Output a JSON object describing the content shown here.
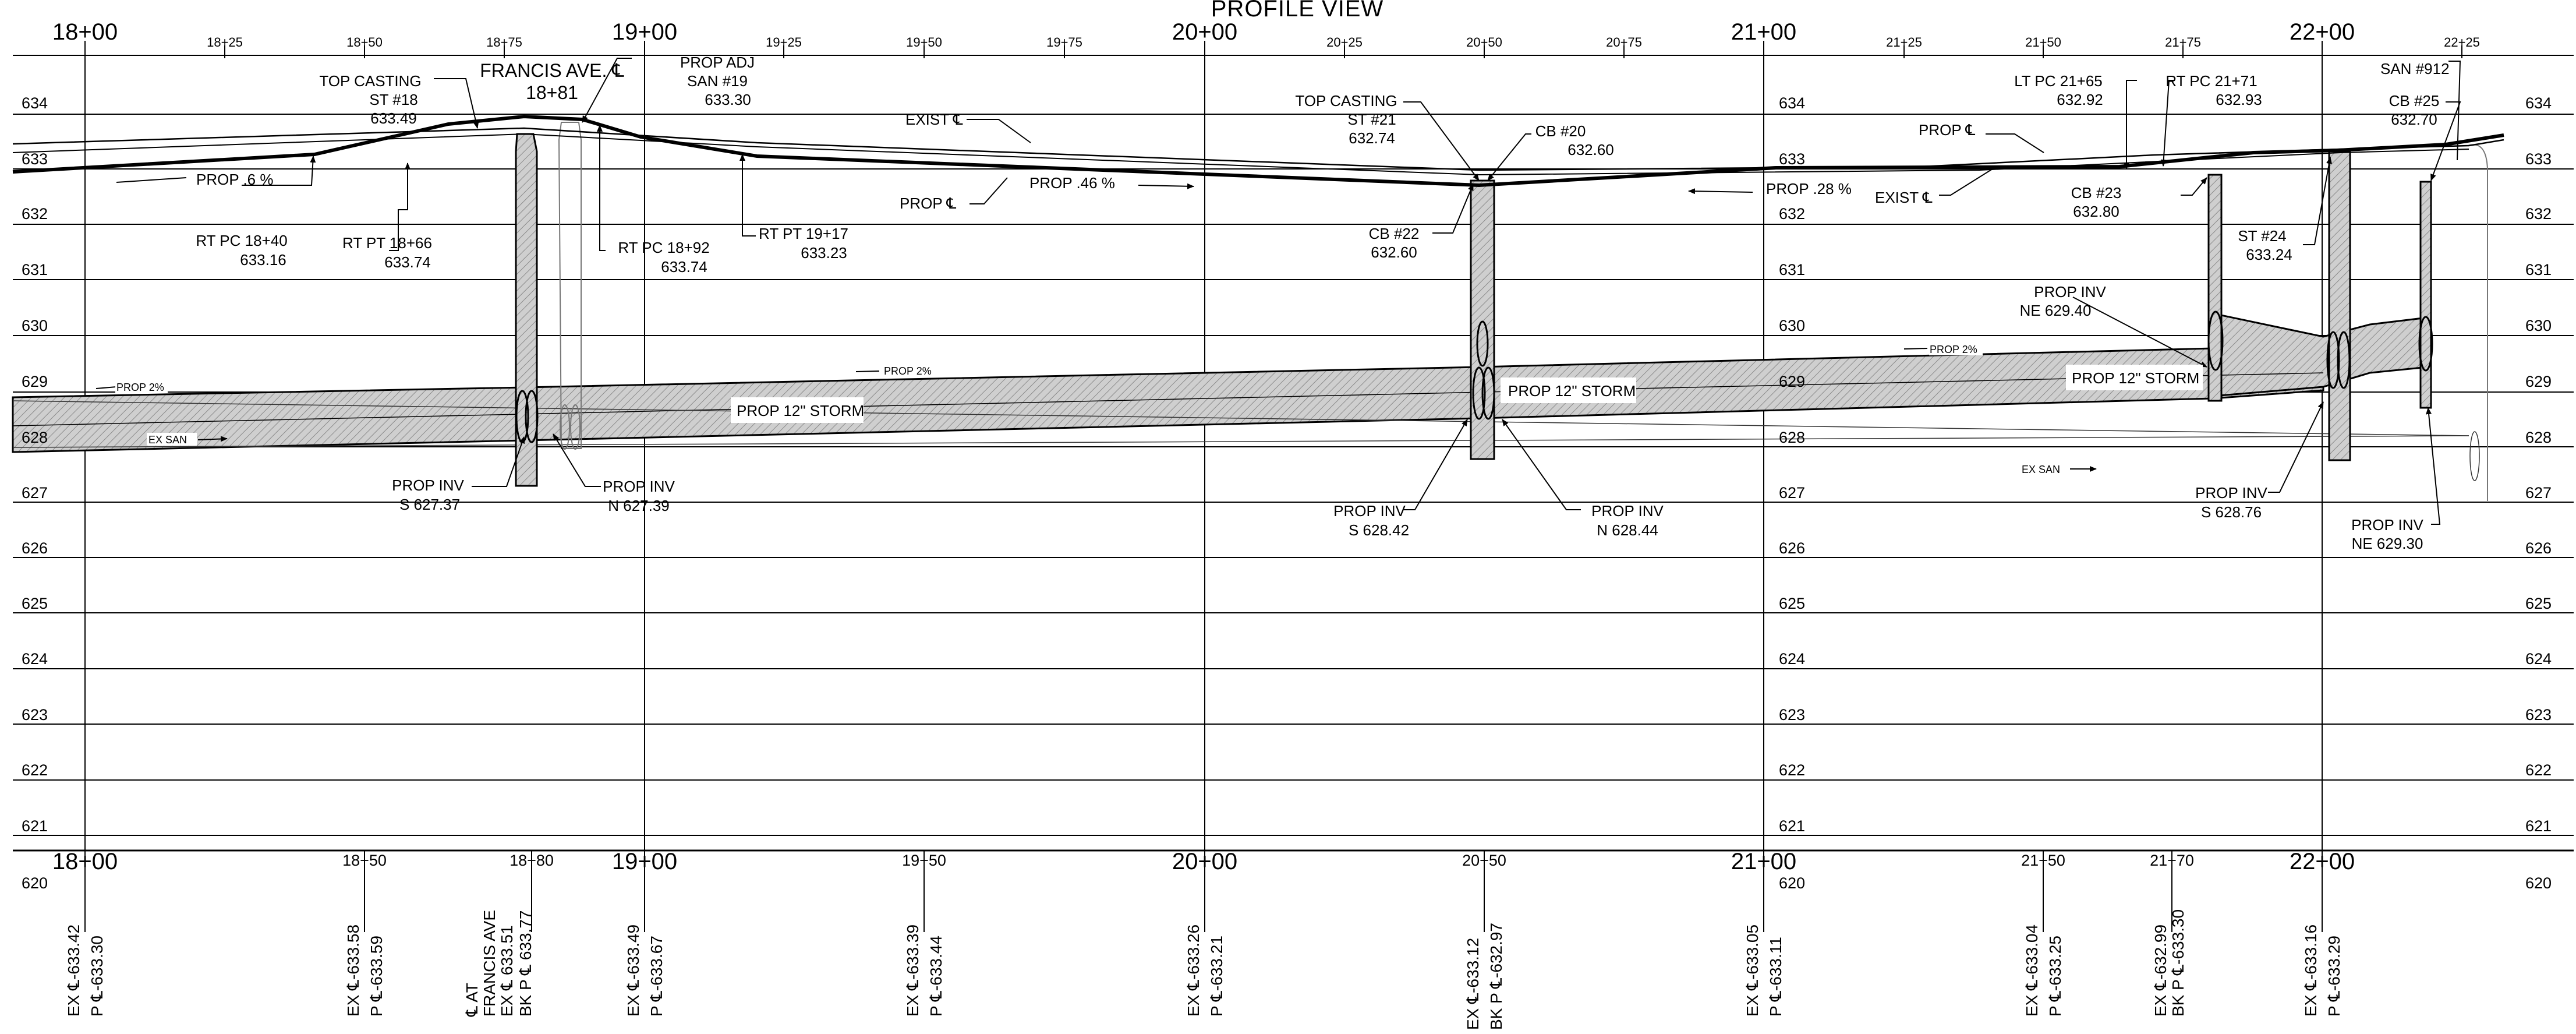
{
  "title": "PROFILE VIEW",
  "stations_major_top": [
    "18+00",
    "19+00",
    "20+00",
    "21+00",
    "22+00"
  ],
  "stations_minor_top": [
    "18+25",
    "18+50",
    "18+75",
    "19+25",
    "19+50",
    "19+75",
    "20+25",
    "20+50",
    "20+75",
    "21+25",
    "21+50",
    "21+75",
    "22+25"
  ],
  "stations_major_bottom": [
    "18+00",
    "19+00",
    "20+00",
    "21+00",
    "22+00"
  ],
  "stations_minor_bottom": [
    "18+50",
    "18+80",
    "19+50",
    "20+50",
    "21+50",
    "21+70"
  ],
  "elevations": [
    "634",
    "633",
    "632",
    "631",
    "630",
    "629",
    "628",
    "627",
    "626",
    "625",
    "624",
    "623",
    "622",
    "621",
    "620"
  ],
  "labels": {
    "francis": [
      "FRANCIS AVE. ℄",
      "18+81"
    ],
    "tc18": [
      "TOP CASTING",
      "ST #18",
      "633.49"
    ],
    "san19": [
      "PROP ADJ",
      "SAN #19",
      "633.30"
    ],
    "exist1": "EXIST ℄",
    "grade1": "PROP .6 %",
    "rtpc1840": [
      "RT PC 18+40",
      "633.16"
    ],
    "rtpt1866": [
      "RT PT 18+66",
      "633.74"
    ],
    "rtpc1892": [
      "RT PC 18+92",
      "633.74"
    ],
    "rtpt1917": [
      "RT PT 19+17",
      "633.23"
    ],
    "propcl1": "PROP ℄",
    "grade2": "PROP .46 %",
    "tc21": [
      "TOP CASTING",
      "ST #21",
      "632.74"
    ],
    "cb20": [
      "CB #20",
      "632.60"
    ],
    "cb22": [
      "CB #22",
      "632.60"
    ],
    "grade3": "PROP .28 %",
    "exist2": "EXIST ℄",
    "ltpc2165": [
      "LT PC 21+65",
      "632.92"
    ],
    "rtpc2171": [
      "RT PC 21+71",
      "632.93"
    ],
    "propcl2": "PROP ℄",
    "cb23": [
      "CB #23",
      "632.80"
    ],
    "st24": [
      "ST #24",
      "633.24"
    ],
    "san912": "SAN #912",
    "cb25": [
      "CB #25",
      "632.70"
    ],
    "storm1": "PROP 12\" STORM",
    "storm2": "PROP 12\" STORM",
    "storm3": "PROP 12\" STORM",
    "prop2_1": "PROP 2%",
    "prop2_2": "PROP 2%",
    "prop2_3": "PROP 2%",
    "exsan1": "EX SAN",
    "exsan2": "EX SAN",
    "inv1": [
      "PROP INV",
      "S 627.37"
    ],
    "inv2": [
      "PROP INV",
      "N 627.39"
    ],
    "inv3": [
      "PROP INV",
      "S 628.42"
    ],
    "inv4": [
      "PROP INV",
      "N 628.44"
    ],
    "inv5": [
      "PROP INV",
      "NE 629.40"
    ],
    "inv6": [
      "PROP INV",
      "S 628.76"
    ],
    "inv7": [
      "PROP INV",
      "NE 629.30"
    ]
  },
  "bottom_elevations": [
    [
      "EX ℄-633.42",
      "P ℄-633.30"
    ],
    [
      "EX ℄-633.58",
      "P ℄-633.59"
    ],
    [
      "℄ AT",
      "FRANCIS AVE",
      "EX ℄ 633.51",
      "BK P ℄ 633.77"
    ],
    [
      "EX ℄-633.49",
      "P ℄-633.67"
    ],
    [
      "EX ℄-633.39",
      "P ℄-633.44"
    ],
    [
      "EX ℄-633.26",
      "P ℄-633.21"
    ],
    [
      "EX ℄-633.12",
      "BK P ℄-632.97"
    ],
    [
      "EX ℄-633.05",
      "P ℄-633.11"
    ],
    [
      "EX ℄-633.04",
      "P ℄-633.25"
    ],
    [
      "EX ℄-632.99",
      "BK P ℄-633.30"
    ],
    [
      "EX ℄-633.16",
      "P ℄-633.29"
    ]
  ]
}
